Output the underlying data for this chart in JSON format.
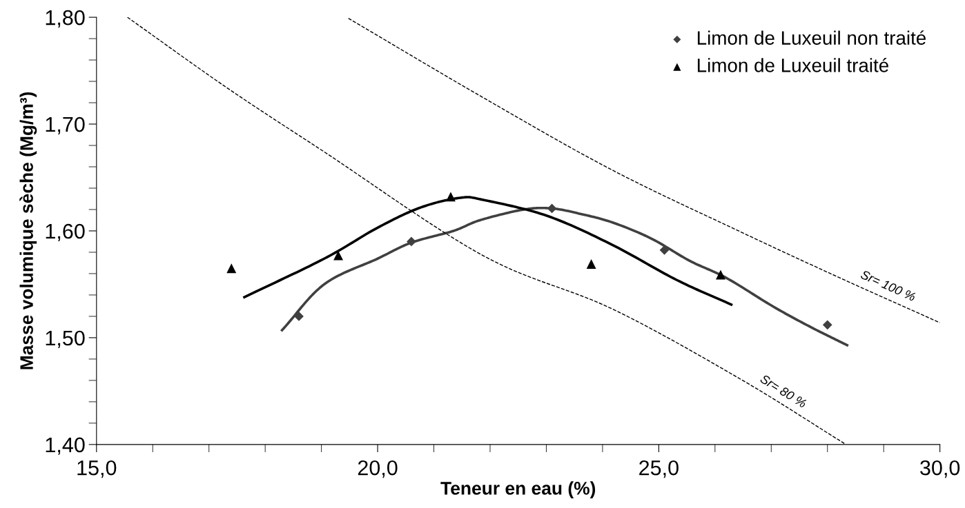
{
  "chart_data": {
    "type": "scatter",
    "xlabel": "Teneur en eau (%)",
    "ylabel": "Masse volumique sèche (Mg/m³)",
    "xlim": [
      15,
      30
    ],
    "ylim": [
      1.4,
      1.8
    ],
    "xticks": [
      {
        "value": 15,
        "label": "15,0"
      },
      {
        "value": 20,
        "label": "20,0"
      },
      {
        "value": 25,
        "label": "25,0"
      },
      {
        "value": 30,
        "label": "30,0"
      }
    ],
    "yticks": [
      {
        "value": 1.4,
        "label": "1,40"
      },
      {
        "value": 1.5,
        "label": "1,50"
      },
      {
        "value": 1.6,
        "label": "1,60"
      },
      {
        "value": 1.7,
        "label": "1,70"
      },
      {
        "value": 1.8,
        "label": "1,80"
      }
    ],
    "grid": false,
    "legend": "top right",
    "series": [
      {
        "name": "Limon de Luxeuil non traité",
        "marker": "diamond",
        "color": "#404040",
        "x": [
          18.6,
          20.6,
          23.1,
          25.1,
          28.0
        ],
        "values": [
          1.52,
          1.59,
          1.621,
          1.582,
          1.512
        ]
      },
      {
        "name": "Limon de Luxeuil traité",
        "marker": "triangle",
        "color": "#000000",
        "x": [
          17.4,
          19.3,
          21.3,
          23.8,
          26.1
        ],
        "values": [
          1.565,
          1.577,
          1.632,
          1.569,
          1.559
        ]
      },
      {
        "type": "line",
        "line_style": "solid",
        "color": "#404040",
        "x": [
          18.3,
          19.05,
          20.0,
          20.6,
          21.35,
          21.82,
          22.6,
          23.1,
          23.6,
          24.17,
          24.86,
          25.55,
          26.2,
          27.04,
          27.7,
          28.35
        ],
        "values": [
          1.507,
          1.55,
          1.574,
          1.589,
          1.6,
          1.61,
          1.62,
          1.621,
          1.616,
          1.608,
          1.593,
          1.572,
          1.556,
          1.529,
          1.51,
          1.493
        ]
      },
      {
        "type": "line",
        "line_style": "solid",
        "color": "#000000",
        "x": [
          17.63,
          19.05,
          20.0,
          20.77,
          21.47,
          21.88,
          23.02,
          24.17,
          25.32,
          26.29
        ],
        "values": [
          1.538,
          1.574,
          1.603,
          1.622,
          1.631,
          1.629,
          1.614,
          1.587,
          1.554,
          1.531
        ]
      },
      {
        "type": "line",
        "line_style": "dashed",
        "color": "#000000",
        "x": [
          15.55,
          17.32,
          19.05,
          21.87,
          24.17,
          26.46,
          28.3
        ],
        "values": [
          1.8,
          1.734,
          1.674,
          1.577,
          1.527,
          1.461,
          1.401
        ]
      },
      {
        "type": "line",
        "line_style": "dashed",
        "color": "#000000",
        "x": [
          19.48,
          21.87,
          24.17,
          26.46,
          28.18,
          30.0
        ],
        "values": [
          1.799,
          1.725,
          1.657,
          1.599,
          1.557,
          1.514
        ]
      }
    ],
    "annotations": [
      {
        "text": "Sr= 100 %",
        "x": 28.99,
        "y": 1.538
      },
      {
        "text": "Sr= 80 %",
        "x": 27.1,
        "y": 1.44
      }
    ]
  }
}
